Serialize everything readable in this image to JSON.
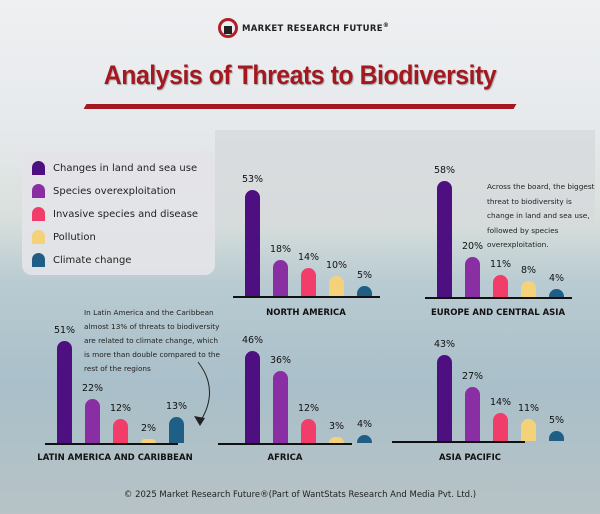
{
  "brand": {
    "name": "MARKET RESEARCH FUTURE",
    "reg": "®"
  },
  "title": "Analysis of Threats to Biodiversity",
  "footer": "© 2025 Market Research Future®(Part of WantStats Research And Media Pvt. Ltd.)",
  "notes": {
    "europe": "Across the board, the biggest threat to biodiversity is change in land and sea use, followed by species overexploitation.",
    "latin": "In Latin America and the Caribbean almost 13% of threats to biodiversity are related to climate change, which is more than double compared to the rest of the regions"
  },
  "chart_data": {
    "type": "bar",
    "title": "Analysis of Threats to Biodiversity",
    "unit": "%",
    "legend_position": "left",
    "series": [
      {
        "name": "Changes in land and sea use",
        "color": "#4e0f80"
      },
      {
        "name": "Species overexploitation",
        "color": "#8a2ea4"
      },
      {
        "name": "Invasive species and disease",
        "color": "#f23d6a"
      },
      {
        "name": "Pollution",
        "color": "#f3d27a"
      },
      {
        "name": "Climate change",
        "color": "#1f5f86"
      }
    ],
    "regions": [
      {
        "name": "NORTH AMERICA",
        "values": [
          53,
          18,
          14,
          10,
          5
        ],
        "labels": [
          "53%",
          "18%",
          "14%",
          "10%",
          "5%"
        ]
      },
      {
        "name": "EUROPE AND CENTRAL ASIA",
        "values": [
          58,
          20,
          11,
          8,
          4
        ],
        "labels": [
          "58%",
          "20%",
          "11%",
          "8%",
          "4%"
        ]
      },
      {
        "name": "LATIN AMERICA AND CARIBBEAN",
        "values": [
          51,
          22,
          12,
          2,
          13
        ],
        "labels": [
          "51%",
          "22%",
          "12%",
          "2%",
          "13%"
        ]
      },
      {
        "name": "AFRICA",
        "values": [
          46,
          36,
          12,
          3,
          4
        ],
        "labels": [
          "46%",
          "36%",
          "12%",
          "3%",
          "4%"
        ]
      },
      {
        "name": "ASIA PACIFIC",
        "values": [
          43,
          27,
          14,
          11,
          5
        ],
        "labels": [
          "43%",
          "27%",
          "14%",
          "11%",
          "5%"
        ]
      }
    ]
  }
}
